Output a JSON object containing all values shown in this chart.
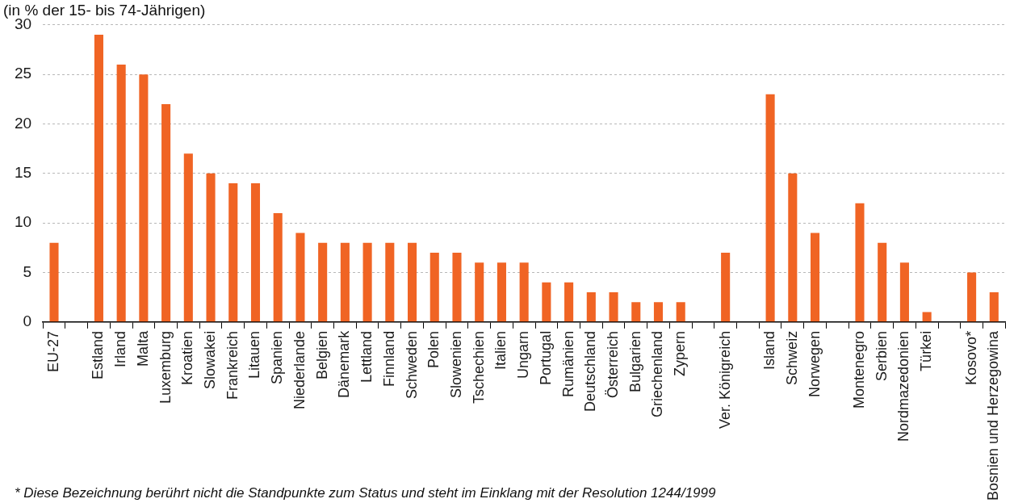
{
  "chart_data": {
    "type": "bar",
    "subtitle": "(in % der 15- bis 74-Jährigen)",
    "categories": [
      "EU-27",
      null,
      "Estland",
      "Irland",
      "Malta",
      "Luxemburg",
      "Kroatien",
      "Slowakei",
      "Frankreich",
      "Litauen",
      "Spanien",
      "Niederlande",
      "Belgien",
      "Dänemark",
      "Lettland",
      "Finnland",
      "Schweden",
      "Polen",
      "Slowenien",
      "Tschechien",
      "Italien",
      "Ungarn",
      "Portugal",
      "Rumänien",
      "Deutschland",
      "Österreich",
      "Bulgarien",
      "Griechenland",
      "Zypern",
      null,
      "Ver. Königreich",
      null,
      "Island",
      "Schweiz",
      "Norwegen",
      null,
      "Montenegro",
      "Serbien",
      "Nordmazedonien",
      "Türkei",
      null,
      "Kosovo*",
      "Bosnien und Herzegowina"
    ],
    "values": [
      8,
      null,
      29,
      26,
      25,
      22,
      17,
      15,
      14,
      14,
      11,
      9,
      8,
      8,
      8,
      8,
      8,
      7,
      7,
      6,
      6,
      6,
      4,
      4,
      3,
      3,
      2,
      2,
      2,
      null,
      7,
      null,
      23,
      15,
      9,
      null,
      12,
      8,
      6,
      1,
      null,
      5,
      3
    ],
    "color": "#f06424",
    "ylim": [
      0,
      30
    ],
    "yticks": [
      0,
      5,
      10,
      15,
      20,
      25,
      30
    ],
    "grid": "y",
    "annotations": [
      "* Diese Bezeichnung berührt nicht die Standpunkte zum Status und steht im Einklang mit der Resolution 1244/1999"
    ]
  }
}
